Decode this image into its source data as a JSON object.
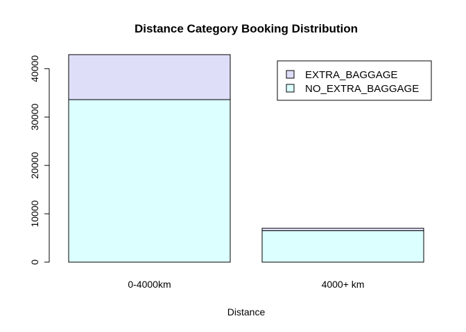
{
  "chart_data": {
    "type": "bar",
    "stacked": true,
    "title": "Distance Category Booking Distribution",
    "xlabel": "Distance",
    "ylabel": "",
    "categories": [
      "0-4000km",
      "4000+ km"
    ],
    "series": [
      {
        "name": "NO_EXTRA_BAGGAGE",
        "values": [
          33600,
          6500
        ],
        "color": "#DCFFFF"
      },
      {
        "name": "EXTRA_BAGGAGE",
        "values": [
          9300,
          500
        ],
        "color": "#DEDEF9"
      }
    ],
    "yticks": [
      0,
      10000,
      20000,
      30000,
      40000
    ],
    "ylim": [
      0,
      42900
    ],
    "legend_position": "top-right",
    "grid": false
  }
}
